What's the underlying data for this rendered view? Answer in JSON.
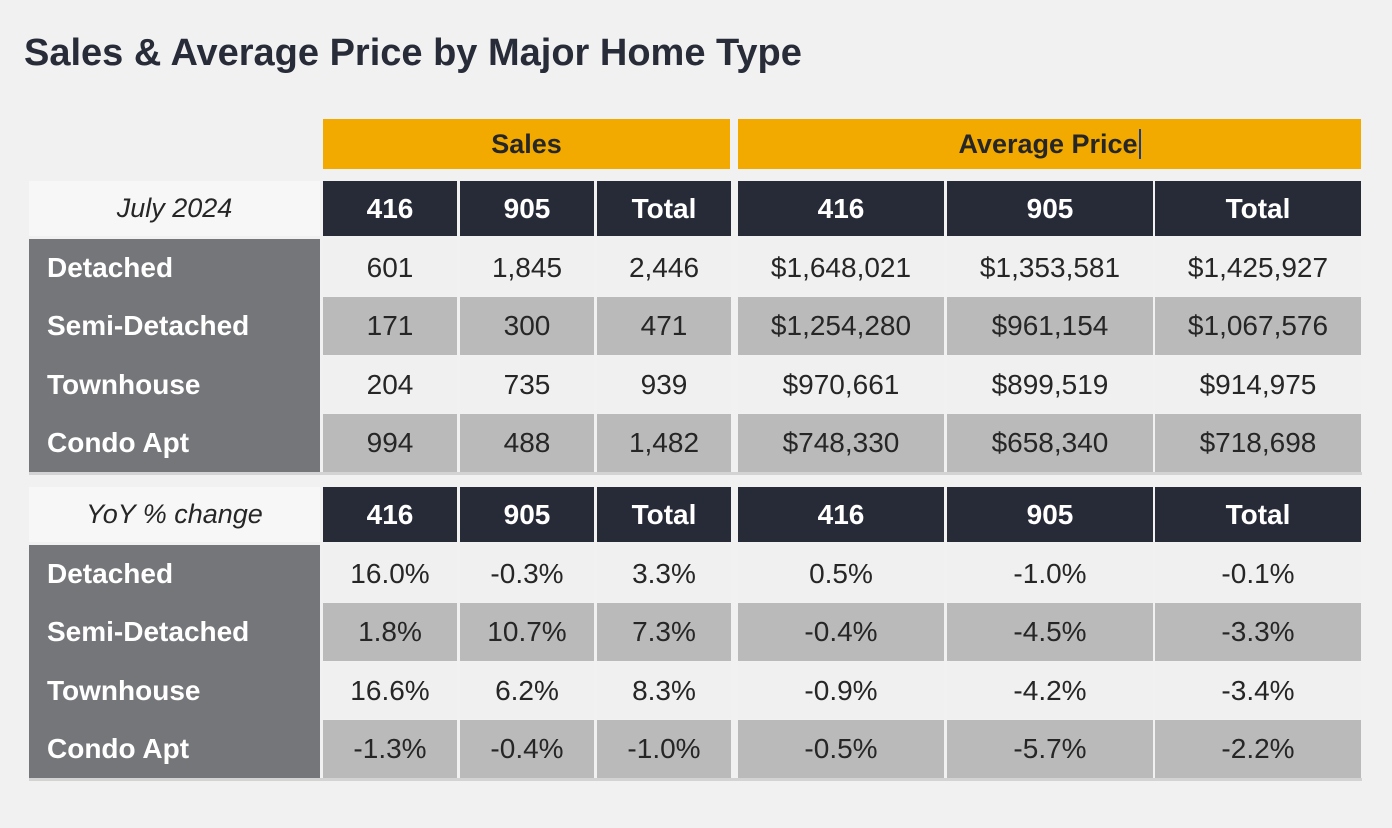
{
  "title": "Sales & Average Price by Major Home Type",
  "groups": {
    "sales": "Sales",
    "avg_price": "Average Price"
  },
  "columns": [
    "416",
    "905",
    "Total",
    "416",
    "905",
    "Total"
  ],
  "row_labels": [
    "Detached",
    "Semi-Detached",
    "Townhouse",
    "Condo Apt"
  ],
  "section1": {
    "label": "July 2024",
    "rows": [
      [
        "601",
        "1,845",
        "2,446",
        "$1,648,021",
        "$1,353,581",
        "$1,425,927"
      ],
      [
        "171",
        "300",
        "471",
        "$1,254,280",
        "$961,154",
        "$1,067,576"
      ],
      [
        "204",
        "735",
        "939",
        "$970,661",
        "$899,519",
        "$914,975"
      ],
      [
        "994",
        "488",
        "1,482",
        "$748,330",
        "$658,340",
        "$718,698"
      ]
    ]
  },
  "section2": {
    "label": "YoY % change",
    "rows": [
      [
        "16.0%",
        "-0.3%",
        "3.3%",
        "0.5%",
        "-1.0%",
        "-0.1%"
      ],
      [
        "1.8%",
        "10.7%",
        "7.3%",
        "-0.4%",
        "-4.5%",
        "-3.3%"
      ],
      [
        "16.6%",
        "6.2%",
        "8.3%",
        "-0.9%",
        "-4.2%",
        "-3.4%"
      ],
      [
        "-1.3%",
        "-0.4%",
        "-1.0%",
        "-0.5%",
        "-5.7%",
        "-2.2%"
      ]
    ]
  },
  "colors": {
    "accent": "#f2a900",
    "header_bg": "#272b37",
    "row_label_bg": "#747679",
    "band_light": "#f0f0f0",
    "band_dark": "#bababa"
  }
}
